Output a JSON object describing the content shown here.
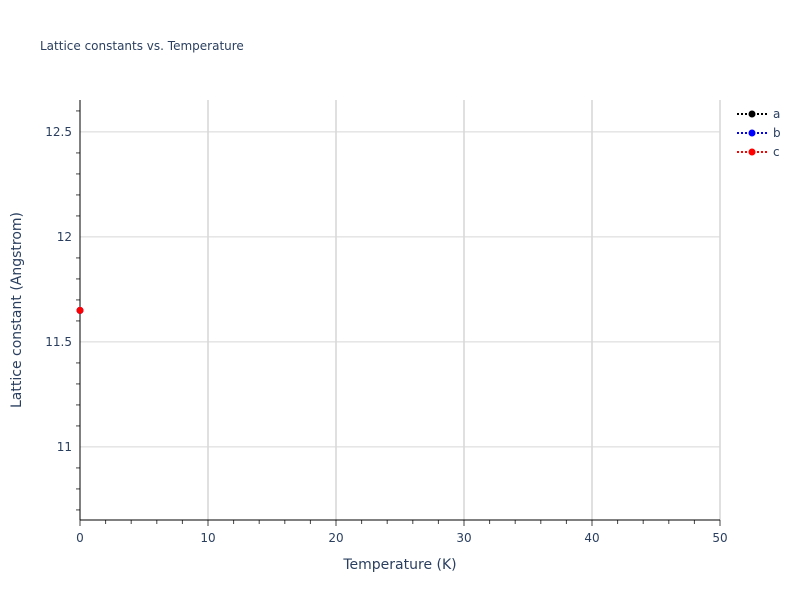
{
  "chart_data": {
    "type": "scatter",
    "mode": "lines+markers",
    "title": "Lattice constants vs. Temperature",
    "xlabel": "Temperature (K)",
    "ylabel": "Lattice constant (Angstrom)",
    "xlim": [
      0,
      50
    ],
    "ylim": [
      10.652,
      12.652
    ],
    "x_ticks": [
      0,
      10,
      20,
      30,
      40,
      50
    ],
    "x_tick_labels": [
      "0",
      "10",
      "20",
      "30",
      "40",
      "50"
    ],
    "y_ticks": [
      11,
      11.5,
      12,
      12.5
    ],
    "y_tick_labels": [
      "11",
      "11.5",
      "12",
      "12.5"
    ],
    "grid": true,
    "legend_position": "top-right",
    "series": [
      {
        "name": "a",
        "color": "#000000",
        "line_style": "dotted",
        "x": [
          0
        ],
        "y": [
          11.65
        ]
      },
      {
        "name": "b",
        "color": "#0000ff",
        "line_style": "dotted",
        "x": [
          0
        ],
        "y": [
          11.65
        ]
      },
      {
        "name": "c",
        "color": "#ff0000",
        "line_style": "dotted",
        "x": [
          0
        ],
        "y": [
          11.65
        ]
      }
    ]
  }
}
